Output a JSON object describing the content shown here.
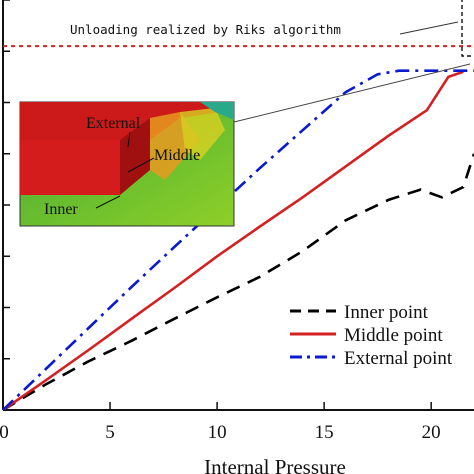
{
  "chart_data": {
    "type": "line",
    "xlabel": "Internal Pressure",
    "xlim": [
      0,
      22
    ],
    "xticks": [
      0,
      5,
      10,
      15,
      20
    ],
    "ylim": [
      0,
      8
    ],
    "grid": false,
    "legend_placement": "bottom-right",
    "series": [
      {
        "name": "Inner point",
        "color": "#000000",
        "style": "dashed",
        "points": [
          [
            0,
            0
          ],
          [
            2,
            0.5
          ],
          [
            4,
            0.95
          ],
          [
            6,
            1.35
          ],
          [
            8,
            1.78
          ],
          [
            10,
            2.2
          ],
          [
            12,
            2.6
          ],
          [
            14,
            3.1
          ],
          [
            16,
            3.7
          ],
          [
            18,
            4.1
          ],
          [
            19.5,
            4.3
          ],
          [
            20.5,
            4.15
          ],
          [
            21.5,
            4.35
          ],
          [
            22,
            5.0
          ]
        ]
      },
      {
        "name": "Middle point",
        "color": "#d42020",
        "style": "solid",
        "points": [
          [
            0,
            0
          ],
          [
            2,
            0.58
          ],
          [
            4,
            1.17
          ],
          [
            6,
            1.78
          ],
          [
            8,
            2.38
          ],
          [
            10,
            3.0
          ],
          [
            12,
            3.58
          ],
          [
            14,
            4.15
          ],
          [
            16,
            4.75
          ],
          [
            18,
            5.35
          ],
          [
            19.8,
            5.85
          ],
          [
            20.8,
            6.5
          ],
          [
            21.5,
            6.6
          ]
        ]
      },
      {
        "name": "External point",
        "color": "#0a1acf",
        "style": "dashdot",
        "points": [
          [
            0,
            0
          ],
          [
            2,
            0.8
          ],
          [
            4,
            1.6
          ],
          [
            6,
            2.4
          ],
          [
            8,
            3.18
          ],
          [
            10,
            3.95
          ],
          [
            12,
            4.72
          ],
          [
            14,
            5.46
          ],
          [
            16,
            6.2
          ],
          [
            17.5,
            6.55
          ],
          [
            18.5,
            6.62
          ],
          [
            20,
            6.62
          ],
          [
            22,
            6.62
          ]
        ]
      }
    ],
    "reference_line": {
      "y": 7.1,
      "color": "#d42020",
      "style": "dotted"
    },
    "annotations": {
      "riks": "Unloading realized by Riks algorithm",
      "inset_labels": [
        "External",
        "Middle",
        "Inner"
      ]
    }
  }
}
